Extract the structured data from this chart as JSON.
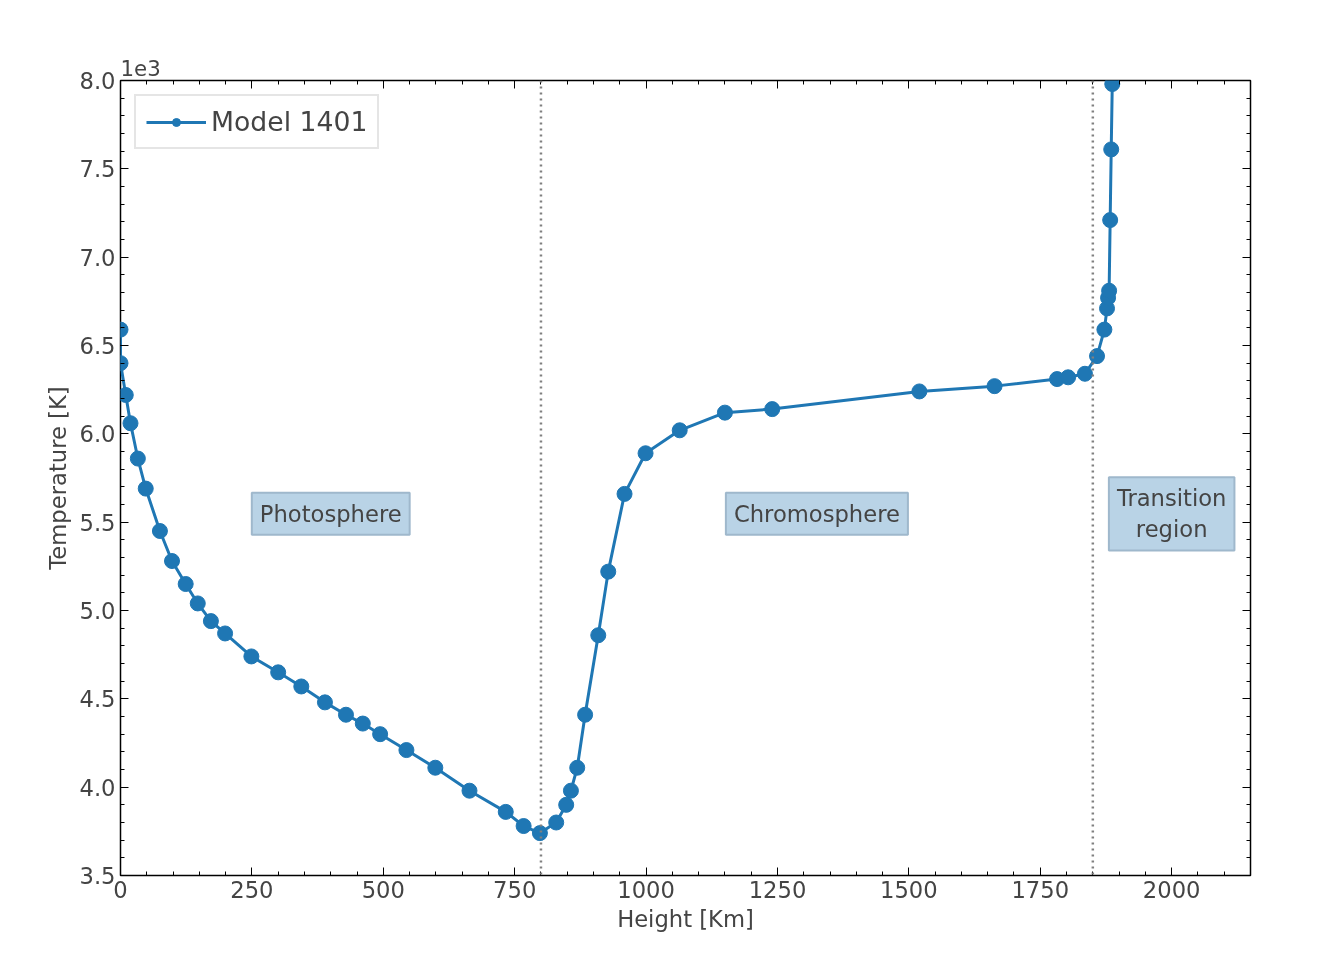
{
  "chart_data": {
    "type": "line",
    "xlabel": "Height [Km]",
    "ylabel": "Temperature [K]",
    "x": [
      0,
      0,
      10,
      19,
      33,
      48,
      75,
      98,
      124,
      147,
      172,
      199,
      249,
      300,
      344,
      389,
      429,
      461,
      494,
      544,
      599,
      664,
      733,
      767,
      798,
      829,
      848,
      857,
      869,
      884,
      909,
      928,
      959,
      999,
      1064,
      1150,
      1240,
      1520,
      1663,
      1782,
      1803,
      1835,
      1858,
      1872,
      1877,
      1879,
      1881,
      1883,
      1885,
      1887
    ],
    "series": [
      {
        "name": "Model 1401",
        "color": "#1f77b4",
        "values": [
          6.59,
          6.4,
          6.22,
          6.06,
          5.86,
          5.69,
          5.45,
          5.28,
          5.15,
          5.04,
          4.94,
          4.87,
          4.74,
          4.65,
          4.57,
          4.48,
          4.41,
          4.36,
          4.3,
          4.21,
          4.11,
          3.98,
          3.86,
          3.78,
          3.74,
          3.8,
          3.9,
          3.98,
          4.11,
          4.41,
          4.86,
          5.22,
          5.66,
          5.89,
          6.02,
          6.12,
          6.14,
          6.24,
          6.27,
          6.31,
          6.32,
          6.34,
          6.44,
          6.59,
          6.71,
          6.77,
          6.81,
          7.21,
          7.61,
          7.98
        ]
      }
    ],
    "xlim": [
      0,
      2150
    ],
    "xticks": [
      0,
      250,
      500,
      750,
      1000,
      1250,
      1500,
      1750,
      2000
    ],
    "ylim": [
      3.5,
      8.0
    ],
    "yticks": [
      {
        "value": 3.5,
        "label": "3.5"
      },
      {
        "value": 4.0,
        "label": "4.0"
      },
      {
        "value": 4.5,
        "label": "4.5"
      },
      {
        "value": 5.0,
        "label": "5.0"
      },
      {
        "value": 5.5,
        "label": "5.5"
      },
      {
        "value": 6.0,
        "label": "6.0"
      },
      {
        "value": 6.5,
        "label": "6.5"
      },
      {
        "value": 7.0,
        "label": "7.0"
      },
      {
        "value": 7.5,
        "label": "7.5"
      },
      {
        "value": 8.0,
        "label": "8.0"
      }
    ],
    "ref_lines": [
      {
        "axis": "x",
        "value": 800,
        "color": "#808080",
        "line_style": "dotted"
      },
      {
        "axis": "x",
        "value": 1850,
        "color": "#808080",
        "line_style": "dotted"
      }
    ],
    "annotations": [
      "1e3",
      "Photosphere",
      "Chromosphere",
      "Transition\nregion"
    ],
    "marker": "circle",
    "line_style": "solid",
    "grid": false,
    "legend": "top left"
  }
}
